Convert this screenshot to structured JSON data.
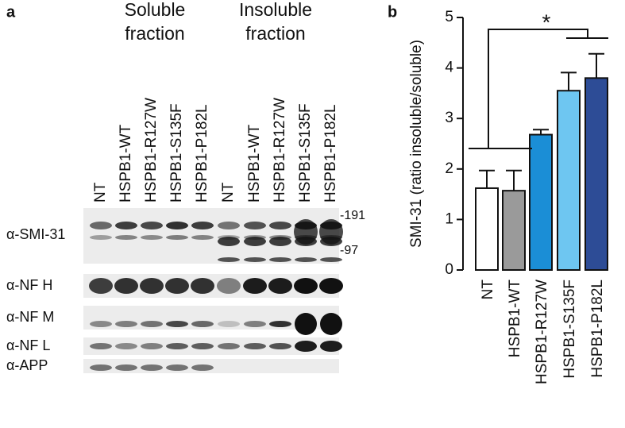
{
  "blot": {
    "panel_label": "a",
    "groups": [
      [
        "Soluble",
        "fraction"
      ],
      [
        "Insoluble",
        "fraction"
      ]
    ],
    "lanes": [
      "NT",
      "HSPB1-WT",
      "HSPB1-R127W",
      "HSPB1-S135F",
      "HSPB1-P182L",
      "NT",
      "HSPB1-WT",
      "HSPB1-R127W",
      "HSPB1-S135F",
      "HSPB1-P182L"
    ],
    "rows": [
      "α-SMI-31",
      "α-NF H",
      "α-NF M",
      "α-NF L",
      "α-APP"
    ],
    "markers": [
      "-191",
      "-97"
    ]
  },
  "chart_data": {
    "type": "bar",
    "panel_label": "b",
    "y_label": "SMI-31 (ratio insoluble/soluble)",
    "categories": [
      "NT",
      "HSPB1-WT",
      "HSPB1-R127W",
      "HSPB1-S135F",
      "HSPB1-P182L"
    ],
    "series": [
      {
        "values": [
          1.62,
          1.57,
          2.68,
          3.55,
          3.8
        ],
        "errors": [
          0.35,
          0.4,
          0.1,
          0.36,
          0.48
        ],
        "colors": [
          "#ffffff",
          "#9a9a9a",
          "#1b8ed6",
          "#6ec6f1",
          "#2d4c96"
        ]
      }
    ],
    "ylim": [
      0,
      5
    ],
    "yticks": [
      0,
      1,
      2,
      3,
      4,
      5
    ],
    "annotation": "*"
  }
}
